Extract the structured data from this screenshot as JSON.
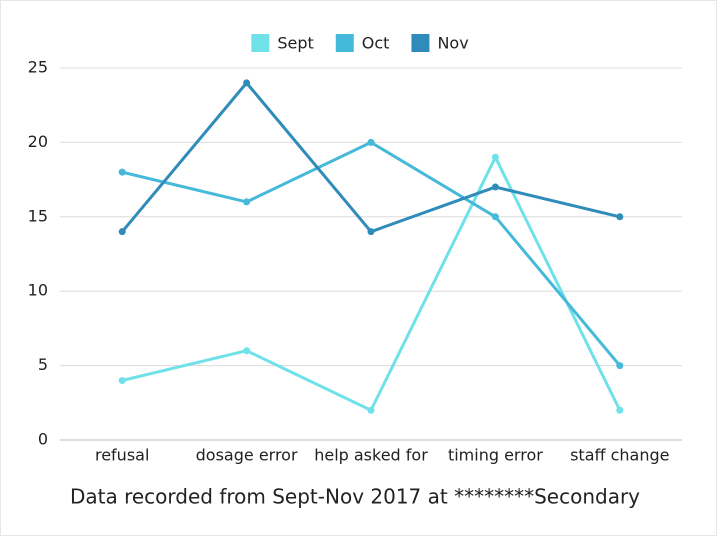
{
  "chart_data": {
    "type": "line",
    "categories": [
      "refusal",
      "dosage error",
      "help asked for",
      "timing error",
      "staff change"
    ],
    "series": [
      {
        "name": "Sept",
        "color": "#6fe1e8",
        "values": [
          4,
          6,
          2,
          19,
          2
        ]
      },
      {
        "name": "Oct",
        "color": "#45b9d9",
        "values": [
          18,
          16,
          20,
          15,
          5
        ]
      },
      {
        "name": "Nov",
        "color": "#2f8bb9",
        "values": [
          14,
          24,
          14,
          17,
          15
        ]
      }
    ],
    "ylim": [
      0,
      25
    ],
    "yticks": [
      0,
      5,
      10,
      15,
      20,
      25
    ],
    "grid": true,
    "legend": "top",
    "caption": "Data recorded from Sept-Nov 2017 at ********Secondary"
  }
}
